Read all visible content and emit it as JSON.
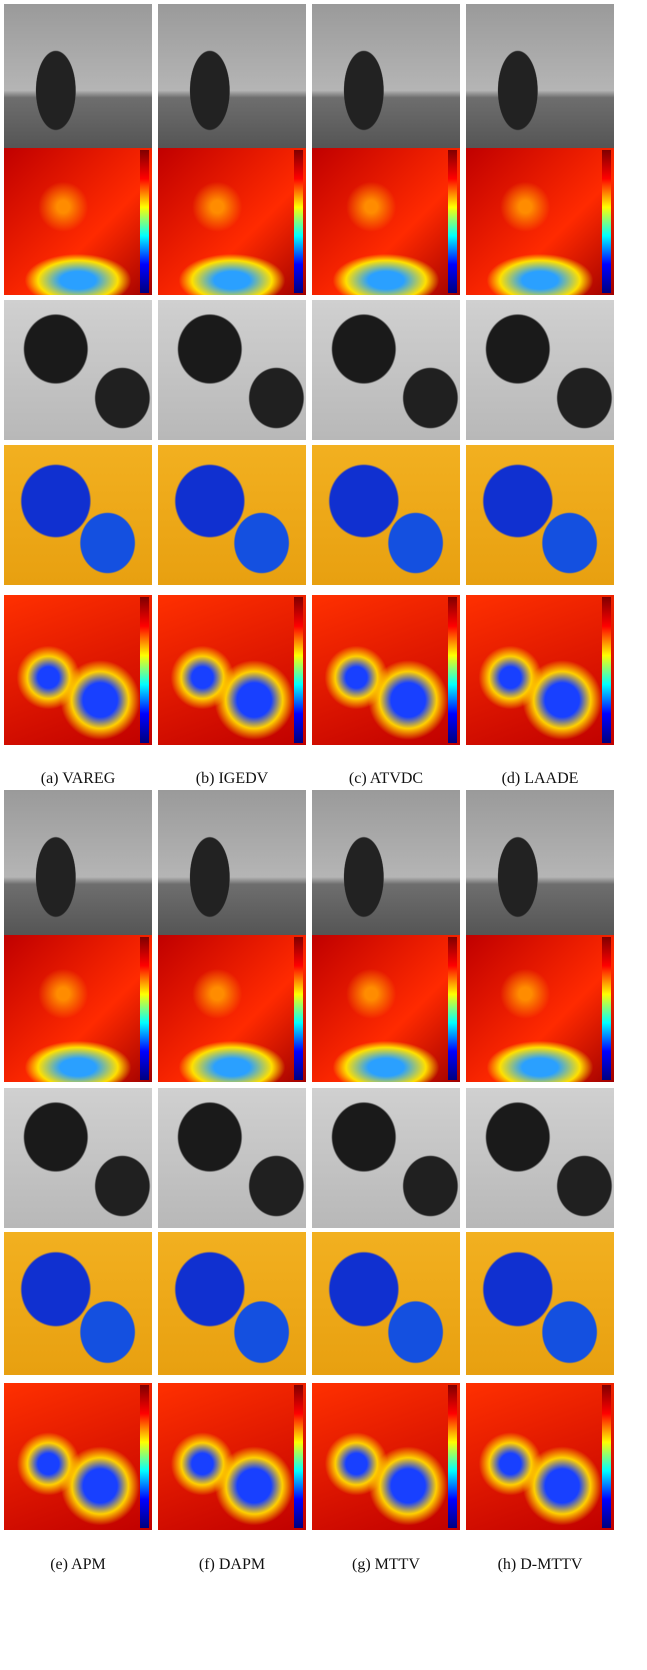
{
  "figure": {
    "captions": [
      "(a)  VAREG",
      "(b)  IGEDV",
      "(c)  ATVDC",
      "(d)  LAADE",
      "(e)  APM",
      "(f)  DAPM",
      "(g)  MTTV",
      "(h)  D-MTTV"
    ]
  }
}
